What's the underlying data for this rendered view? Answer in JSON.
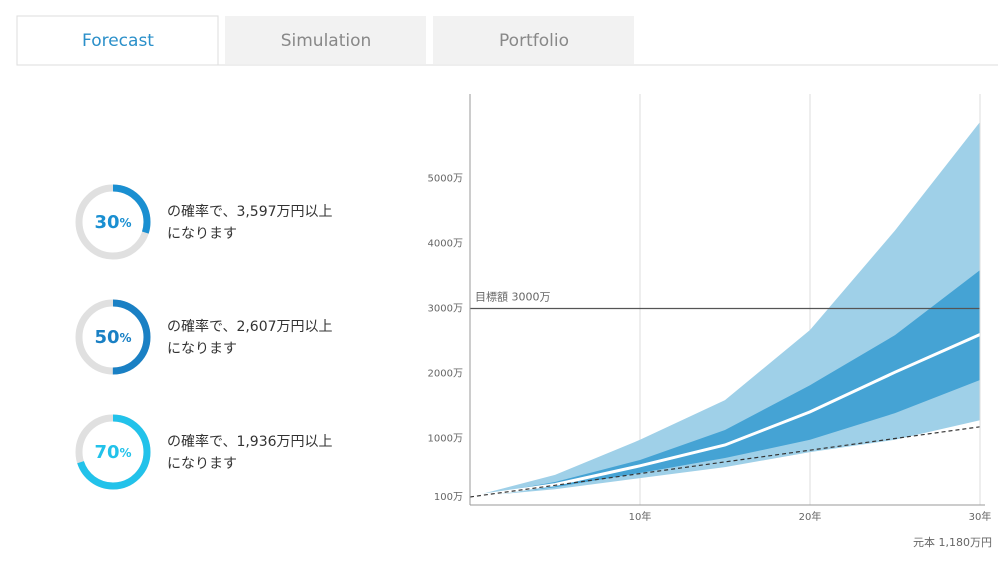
{
  "tabs": [
    "Forecast",
    "Simulation",
    "Portfolio"
  ],
  "gauges": [
    {
      "value": 30,
      "unit": "%",
      "color": "#1a8fd1",
      "line1": "の確率で、3,597万円以上",
      "line2": "になります"
    },
    {
      "value": 50,
      "unit": "%",
      "color": "#1a80c4",
      "line1": "の確率で、2,607万円以上",
      "line2": "になります"
    },
    {
      "value": 70,
      "unit": "%",
      "color": "#22c2ea",
      "line1": "の確率で、1,936万円以上",
      "line2": "になります"
    }
  ],
  "chart_data": {
    "type": "area",
    "x": [
      0,
      5,
      10,
      15,
      20,
      25,
      30
    ],
    "xlim": [
      0,
      30
    ],
    "xticks": [
      {
        "value": 10,
        "label": "10年"
      },
      {
        "value": 20,
        "label": "20年"
      },
      {
        "value": 30,
        "label": "30年"
      }
    ],
    "ylim": [
      0,
      6300
    ],
    "yticks": [
      {
        "value": 100,
        "label": "100万"
      },
      {
        "value": 1000,
        "label": "1000万"
      },
      {
        "value": 2000,
        "label": "2000万"
      },
      {
        "value": 3000,
        "label": "3000万"
      },
      {
        "value": 4000,
        "label": "4000万"
      },
      {
        "value": 5000,
        "label": "5000万"
      }
    ],
    "bands": [
      {
        "color": "#9fd0e8",
        "upper": [
          100,
          440,
          980,
          1590,
          2670,
          4200,
          5870
        ],
        "lower": [
          100,
          220,
          390,
          560,
          790,
          980,
          1280
        ]
      },
      {
        "color": "#45a3d4",
        "upper": [
          100,
          330,
          670,
          1130,
          1820,
          2590,
          3590
        ],
        "lower": [
          100,
          250,
          470,
          700,
          980,
          1390,
          1900
        ]
      }
    ],
    "median": {
      "color": "#ffffff",
      "values": [
        100,
        290,
        580,
        900,
        1410,
        2020,
        2600
      ]
    },
    "principal": {
      "color": "#333333",
      "values": [
        100,
        280,
        460,
        640,
        820,
        1000,
        1180
      ]
    },
    "target": {
      "value": 3000,
      "label": "目標額 3000万",
      "color": "#555555"
    },
    "footer": "元本 1,180万円"
  }
}
